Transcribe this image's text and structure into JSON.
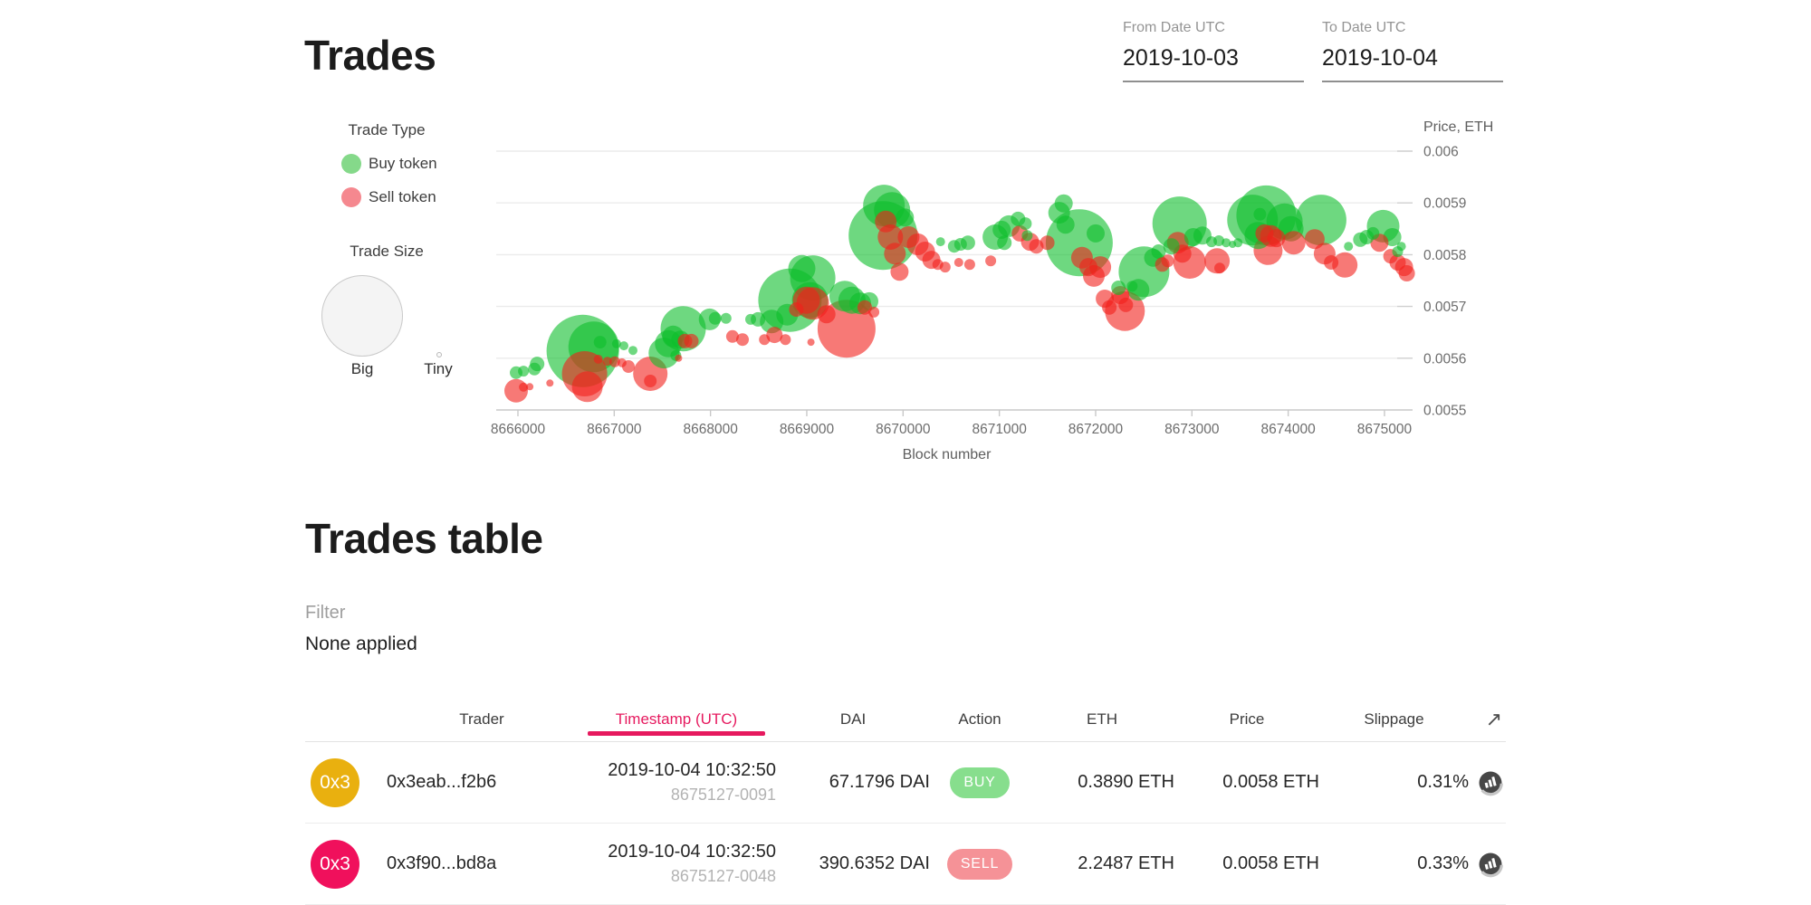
{
  "page": {
    "title": "Trades"
  },
  "date_filters": {
    "from": {
      "label": "From Date UTC",
      "value": "2019-10-03"
    },
    "to": {
      "label": "To Date UTC",
      "value": "2019-10-04"
    }
  },
  "chart_data": {
    "type": "scatter",
    "title": "",
    "xlabel": "Block number",
    "ylabel": "Price, ETH",
    "x_ticks": [
      8666000,
      8667000,
      8668000,
      8669000,
      8670000,
      8671000,
      8672000,
      8673000,
      8674000,
      8675000
    ],
    "y_ticks": [
      "0.006",
      "0.0059",
      "0.0058",
      "0.0057",
      "0.0056",
      "0.0055"
    ],
    "x_range": [
      8665700,
      8675290
    ],
    "y_range": [
      0.0055,
      0.006
    ],
    "grid": true,
    "marker_opacity": 0.6,
    "legend": {
      "trade_type_label": "Trade Type",
      "buy_label": "Buy token",
      "sell_label": "Sell token",
      "trade_size_label": "Trade Size",
      "big_label": "Big",
      "tiny_label": "Tiny"
    },
    "series": [
      {
        "name": "Buy token",
        "color": "#0ebe2c",
        "points": [
          [
            8665981,
            0.005572,
            7
          ],
          [
            8666057,
            0.005575,
            6
          ],
          [
            8666171,
            0.005579,
            7
          ],
          [
            8666199,
            0.005589,
            8
          ],
          [
            8666673,
            0.005614,
            40
          ],
          [
            8666787,
            0.005622,
            28
          ],
          [
            8666853,
            0.005631,
            7
          ],
          [
            8667024,
            0.005628,
            5
          ],
          [
            8667100,
            0.005624,
            5
          ],
          [
            8667194,
            0.005615,
            5
          ],
          [
            8667517,
            0.00561,
            17
          ],
          [
            8667564,
            0.005628,
            15
          ],
          [
            8667612,
            0.005642,
            12
          ],
          [
            8667716,
            0.005657,
            25
          ],
          [
            8667687,
            0.005636,
            10
          ],
          [
            8667640,
            0.005605,
            6
          ],
          [
            8667991,
            0.005675,
            12
          ],
          [
            8668048,
            0.005677,
            7
          ],
          [
            8668161,
            0.005677,
            6
          ],
          [
            8668417,
            0.005675,
            6
          ],
          [
            8668493,
            0.005675,
            8
          ],
          [
            8668635,
            0.005671,
            13
          ],
          [
            8668825,
            0.005712,
            35
          ],
          [
            8668796,
            0.005684,
            12
          ],
          [
            8668948,
            0.005773,
            15
          ],
          [
            8669062,
            0.005755,
            25
          ],
          [
            8669034,
            0.005712,
            20
          ],
          [
            8669394,
            0.00572,
            17
          ],
          [
            8669469,
            0.005712,
            15
          ],
          [
            8669555,
            0.005706,
            12
          ],
          [
            8669649,
            0.00571,
            10
          ],
          [
            8669801,
            0.005895,
            23
          ],
          [
            8669886,
            0.005886,
            20
          ],
          [
            8669792,
            0.005837,
            38
          ],
          [
            8670019,
            0.005872,
            10
          ],
          [
            8670389,
            0.005825,
            5
          ],
          [
            8670531,
            0.005816,
            7
          ],
          [
            8670597,
            0.00582,
            7
          ],
          [
            8670673,
            0.005823,
            8
          ],
          [
            8670957,
            0.005834,
            14
          ],
          [
            8671024,
            0.005848,
            10
          ],
          [
            8671099,
            0.005855,
            12
          ],
          [
            8671052,
            0.005823,
            8
          ],
          [
            8671194,
            0.005869,
            8
          ],
          [
            8671270,
            0.00586,
            7
          ],
          [
            8671289,
            0.005837,
            6
          ],
          [
            8671621,
            0.005881,
            12
          ],
          [
            8671668,
            0.005899,
            10
          ],
          [
            8671687,
            0.005858,
            10
          ],
          [
            8671830,
            0.005823,
            37
          ],
          [
            8672000,
            0.005841,
            10
          ],
          [
            8672237,
            0.005736,
            8
          ],
          [
            8672502,
            0.005767,
            28
          ],
          [
            8672445,
            0.005732,
            12
          ],
          [
            8672379,
            0.005739,
            6
          ],
          [
            8672597,
            0.005794,
            10
          ],
          [
            8672654,
            0.005806,
            8
          ],
          [
            8672787,
            0.005816,
            9
          ],
          [
            8672872,
            0.00586,
            30
          ],
          [
            8673014,
            0.005834,
            10
          ],
          [
            8673109,
            0.005837,
            10
          ],
          [
            8673204,
            0.005825,
            6
          ],
          [
            8673280,
            0.005827,
            6
          ],
          [
            8673355,
            0.005823,
            5
          ],
          [
            8673422,
            0.00582,
            4
          ],
          [
            8673479,
            0.005823,
            5
          ],
          [
            8673630,
            0.005867,
            28
          ],
          [
            8673772,
            0.005876,
            33
          ],
          [
            8673687,
            0.005837,
            15
          ],
          [
            8673706,
            0.005878,
            7
          ],
          [
            8673962,
            0.005864,
            20
          ],
          [
            8674028,
            0.00585,
            14
          ],
          [
            8674341,
            0.005867,
            28
          ],
          [
            8674626,
            0.005816,
            5
          ],
          [
            8674749,
            0.005829,
            8
          ],
          [
            8674815,
            0.005834,
            8
          ],
          [
            8674881,
            0.005841,
            7
          ],
          [
            8674986,
            0.005855,
            18
          ],
          [
            8675081,
            0.005834,
            10
          ],
          [
            8675137,
            0.005806,
            6
          ],
          [
            8675175,
            0.005816,
            5
          ]
        ]
      },
      {
        "name": "Sell token",
        "color": "#f2201b",
        "points": [
          [
            8665981,
            0.005537,
            13
          ],
          [
            8666057,
            0.005544,
            5
          ],
          [
            8666123,
            0.005545,
            4
          ],
          [
            8666332,
            0.005552,
            4
          ],
          [
            8666692,
            0.00557,
            25
          ],
          [
            8666720,
            0.005545,
            17
          ],
          [
            8666834,
            0.005598,
            5
          ],
          [
            8666929,
            0.005594,
            5
          ],
          [
            8667005,
            0.005593,
            6
          ],
          [
            8667081,
            0.005591,
            5
          ],
          [
            8667147,
            0.005584,
            7
          ],
          [
            8667375,
            0.00557,
            19
          ],
          [
            8667375,
            0.005556,
            7
          ],
          [
            8667735,
            0.005633,
            8
          ],
          [
            8667801,
            0.005633,
            8
          ],
          [
            8667668,
            0.0056,
            4
          ],
          [
            8668228,
            0.005642,
            7
          ],
          [
            8668332,
            0.005636,
            7
          ],
          [
            8668560,
            0.005636,
            6
          ],
          [
            8668664,
            0.005645,
            9
          ],
          [
            8668778,
            0.005636,
            6
          ],
          [
            8668891,
            0.005694,
            8
          ],
          [
            8669062,
            0.005706,
            18
          ],
          [
            8668995,
            0.005712,
            15
          ],
          [
            8669204,
            0.005685,
            10
          ],
          [
            8669602,
            0.005698,
            8
          ],
          [
            8669697,
            0.005689,
            6
          ],
          [
            8669413,
            0.005657,
            32
          ],
          [
            8669043,
            0.005631,
            4
          ],
          [
            8669820,
            0.005864,
            12
          ],
          [
            8669868,
            0.005834,
            14
          ],
          [
            8669915,
            0.005802,
            12
          ],
          [
            8669963,
            0.005767,
            10
          ],
          [
            8670057,
            0.005834,
            12
          ],
          [
            8670152,
            0.00582,
            12
          ],
          [
            8670228,
            0.005806,
            11
          ],
          [
            8670294,
            0.00579,
            10
          ],
          [
            8670361,
            0.005781,
            6
          ],
          [
            8670437,
            0.005776,
            6
          ],
          [
            8670578,
            0.005785,
            5
          ],
          [
            8670692,
            0.005781,
            6
          ],
          [
            8670910,
            0.005788,
            6
          ],
          [
            8671213,
            0.005841,
            9
          ],
          [
            8671318,
            0.005825,
            10
          ],
          [
            8671384,
            0.005816,
            8
          ],
          [
            8671498,
            0.005823,
            8
          ],
          [
            8671858,
            0.005794,
            12
          ],
          [
            8671925,
            0.005776,
            10
          ],
          [
            8671981,
            0.005759,
            12
          ],
          [
            8672048,
            0.005776,
            12
          ],
          [
            8672095,
            0.005715,
            10
          ],
          [
            8672142,
            0.005698,
            8
          ],
          [
            8672256,
            0.005722,
            10
          ],
          [
            8672313,
            0.005703,
            8
          ],
          [
            8672304,
            0.005691,
            22
          ],
          [
            8672692,
            0.005781,
            8
          ],
          [
            8672749,
            0.005788,
            7
          ],
          [
            8672853,
            0.005823,
            12
          ],
          [
            8672900,
            0.005802,
            10
          ],
          [
            8672976,
            0.005785,
            18
          ],
          [
            8673261,
            0.005788,
            14
          ],
          [
            8673289,
            0.005774,
            6
          ],
          [
            8673753,
            0.005841,
            10
          ],
          [
            8673820,
            0.005836,
            12
          ],
          [
            8673876,
            0.005832,
            10
          ],
          [
            8673791,
            0.005808,
            16
          ],
          [
            8674057,
            0.005823,
            13
          ],
          [
            8674275,
            0.00583,
            11
          ],
          [
            8674379,
            0.005802,
            12
          ],
          [
            8674446,
            0.005785,
            8
          ],
          [
            8674588,
            0.00578,
            14
          ],
          [
            8674948,
            0.005823,
            10
          ],
          [
            8675062,
            0.005797,
            8
          ],
          [
            8675137,
            0.005785,
            9
          ],
          [
            8675203,
            0.005776,
            10
          ],
          [
            8675232,
            0.005764,
            9
          ]
        ]
      }
    ]
  },
  "table": {
    "heading": "Trades table",
    "filter_label": "Filter",
    "filter_value": "None applied",
    "sort_arrow": "↗",
    "columns": [
      "Trader",
      "Timestamp (UTC)",
      "DAI",
      "Action",
      "ETH",
      "Price",
      "Slippage"
    ],
    "sort_column": "Timestamp (UTC)",
    "rows": [
      {
        "avatar_text": "0x3",
        "avatar_color": "#e9b00f",
        "trader": "0x3eab...f2b6",
        "timestamp": "2019-10-04 10:32:50",
        "tx": "8675127-0091",
        "dai": "67.1796 DAI",
        "action": "BUY",
        "action_color": "#87de8d",
        "eth": "0.3890 ETH",
        "price": "0.0058 ETH",
        "slippage": "0.31%"
      },
      {
        "avatar_text": "0x3",
        "avatar_color": "#f0105c",
        "trader": "0x3f90...bd8a",
        "timestamp": "2019-10-04 10:32:50",
        "tx": "8675127-0048",
        "dai": "390.6352 DAI",
        "action": "SELL",
        "action_color": "#f59297",
        "eth": "2.2487 ETH",
        "price": "0.0058 ETH",
        "slippage": "0.33%"
      }
    ]
  }
}
